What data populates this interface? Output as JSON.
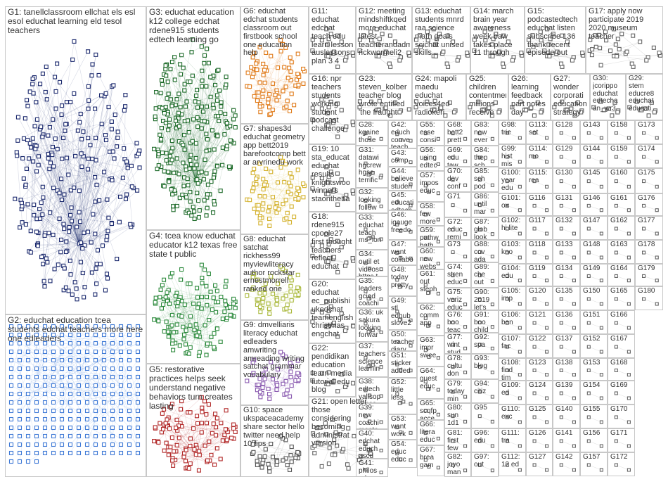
{
  "graph": {
    "groups": [
      {
        "id": "G1",
        "terms": "tanellclassroom ellchat els esl esol educhat learning eld tesol teachers",
        "color": "#1c2a6e"
      },
      {
        "id": "G2",
        "terms": "educhat education tcea students edchat teachers more here one edleaders",
        "color": "#3f7ad6"
      },
      {
        "id": "G3",
        "terms": "educhat education k12 college edchat rdene915 students edtech learning go",
        "color": "#1e6b2a"
      },
      {
        "id": "G4",
        "terms": "tcea know educhat educator k12 texas free state t public",
        "color": "#2e8b3e"
      },
      {
        "id": "G5",
        "terms": "restorative practices helps seek understand negative behaviors turn creates lasting",
        "color": "#b22a2a"
      },
      {
        "id": "G6",
        "terms": "educhat edchat students classroom out firstbook school one education help",
        "color": "#e07b1a"
      },
      {
        "id": "G7",
        "terms": "shapes3d educhat geometry app bett2019 barefootcomp bett ar arvrinedu work",
        "color": "#d4b22e"
      },
      {
        "id": "G8",
        "terms": "educhat satchat rickhess99 myviewliteracy author rockstar ernestmorrell ranked one",
        "color": "#a9b83a"
      },
      {
        "id": "G9",
        "terms": "dmvelliaris literacy educhat edleaders amwriting amreading writing satchat grammar vocabulary",
        "color": "#8a5ab0"
      },
      {
        "id": "G10",
        "terms": "space ukspaceacademy share sector hello twitter need help 10 tips",
        "color": "#555555"
      },
      {
        "id": "G11",
        "terms": "educhat edchat teach edu learn lesson auslessons plan 3 4",
        "color": "#666666"
      },
      {
        "id": "G12",
        "terms": "meeting mindshiftkqed more educhat latest teacherandadm rickwormeli2",
        "color": "#666666"
      },
      {
        "id": "G13",
        "terms": "educhat students mnrd raa science math goals scichat unised skills",
        "color": "#666666"
      },
      {
        "id": "G14",
        "terms": "march brain year awareness week baw takes place 11 through",
        "color": "#666666"
      },
      {
        "id": "G15",
        "terms": "podcastedtech educhat listen subscribe 136 thank recent episode out",
        "color": "#666666"
      },
      {
        "id": "G16",
        "terms": "npr teachers students working student podcast challenge",
        "color": "#666666"
      },
      {
        "id": "G17",
        "terms": "apply now participate 2019 2020 museum teacher",
        "color": "#666666"
      },
      {
        "id": "G18",
        "terms": "rdene915 cpoole27 first thought teachers reflect educhat",
        "color": "#666666"
      },
      {
        "id": "G19",
        "terms": "10 sta_educat educhat results knightswoo winners staontheba",
        "color": "#666666"
      },
      {
        "id": "G20",
        "terms": "educhat ec_publishi ukedchat teamenglish christmas engchat",
        "color": "#666666"
      },
      {
        "id": "G21",
        "terms": "open letter those considering becoming administrat version",
        "color": "#666666"
      },
      {
        "id": "G22",
        "terms": "pendidikan education learn media tutorial edu blog",
        "color": "#666666"
      },
      {
        "id": "G23",
        "terms": "steven_kolber teacher blog wrote entitled 'the fraught",
        "color": "#666666"
      },
      {
        "id": "G24",
        "terms": "mapoli maedu educhat voices4ed radiokeri",
        "color": "#666666"
      },
      {
        "id": "G25",
        "terms": "children contentment millions receive",
        "color": "#666666"
      },
      {
        "id": "G26",
        "terms": "learning feedback part notes day",
        "color": "#666666"
      },
      {
        "id": "G27",
        "terms": "wonder corporati education strategy",
        "color": "#666666"
      },
      {
        "id": "G28",
        "terms": "kgaine those more 100",
        "color": "#666666"
      },
      {
        "id": "G29",
        "terms": "stem educre8 educhat educati",
        "color": "#666666"
      },
      {
        "id": "G30",
        "terms": "jcorippo educhat edtecha an_wr3",
        "color": "#666666"
      },
      {
        "id": "G31",
        "terms": "datawi hgcrew hgse terrific",
        "color": "#666666"
      },
      {
        "id": "G32",
        "terms": "looking follow range",
        "color": "#666666"
      },
      {
        "id": "G33",
        "terms": "educhat teach ms_lon",
        "color": "#666666"
      },
      {
        "id": "G34",
        "terms": "outil et videos https t",
        "color": "#666666"
      },
      {
        "id": "G35",
        "terms": "leaders gcied coachi",
        "color": "#666666"
      },
      {
        "id": "G36",
        "terms": "uk sakura looking forwar",
        "color": "#666666"
      },
      {
        "id": "G37",
        "terms": "teachers science learnin",
        "color": "#666666"
      },
      {
        "id": "G38",
        "terms": "edtech yallsop ijcses",
        "color": "#666666"
      },
      {
        "id": "G39",
        "terms": "new coachi mento",
        "color": "#666666"
      },
      {
        "id": "G40",
        "terms": "edchat educh ascd",
        "color": "#666666"
      },
      {
        "id": "G41",
        "terms": "philos educa book",
        "color": "#666666"
      },
      {
        "id": "G42",
        "terms": "educh conve teach",
        "color": "#666666"
      },
      {
        "id": "G43",
        "terms": "comp more kids",
        "color": "#666666"
      },
      {
        "id": "G44",
        "terms": "believe studen",
        "color": "#666666"
      },
      {
        "id": "G45",
        "terms": "educati edtech",
        "color": "#666666"
      },
      {
        "id": "G46",
        "terms": "igauge freedo",
        "color": "#666666"
      },
      {
        "id": "G47",
        "terms": "want collabo",
        "color": "#666666"
      },
      {
        "id": "G48",
        "terms": "today pretty",
        "color": "#666666"
      },
      {
        "id": "G49",
        "terms": "stl edhub slove2",
        "color": "#666666"
      },
      {
        "id": "G50",
        "terms": "teacher diary",
        "color": "#666666"
      },
      {
        "id": "G51",
        "terms": "sticker added",
        "color": "#666666"
      },
      {
        "id": "G52",
        "terms": "little less",
        "color": "#666666"
      },
      {
        "id": "G53",
        "terms": "want work",
        "color": "#666666"
      },
      {
        "id": "G54",
        "terms": "educ educ",
        "color": "#666666"
      },
      {
        "id": "G55",
        "terms": "esse consi",
        "color": "#666666"
      },
      {
        "id": "G56",
        "terms": "using edtec",
        "color": "#666666"
      },
      {
        "id": "G57",
        "terms": "impos educ",
        "color": "#666666"
      },
      {
        "id": "G58",
        "terms": "few more",
        "color": "#666666"
      },
      {
        "id": "G59",
        "terms": "pathw bath",
        "color": "#666666"
      },
      {
        "id": "G60",
        "terms": "new webs",
        "color": "#666666"
      },
      {
        "id": "G61",
        "terms": "out steph",
        "color": "#666666"
      },
      {
        "id": "G62",
        "terms": "comm app",
        "color": "#666666"
      },
      {
        "id": "G63",
        "terms": "impr swee",
        "color": "#666666"
      },
      {
        "id": "G64",
        "terms": "guest educ",
        "color": "#666666"
      },
      {
        "id": "G65",
        "terms": "scqfp acce",
        "color": "#666666"
      },
      {
        "id": "G66",
        "terms": "litera educ",
        "color": "#666666"
      },
      {
        "id": "G67",
        "terms": "brea gam",
        "color": "#666666"
      },
      {
        "id": "G68",
        "terms": "bett2 prett",
        "color": "#666666"
      },
      {
        "id": "G69",
        "terms": "edu taw",
        "color": "#666666"
      },
      {
        "id": "G70",
        "terms": "dev conf",
        "color": "#666666"
      },
      {
        "id": "G71",
        "terms": "",
        "color": "#666666"
      },
      {
        "id": "G72",
        "terms": "educ remi",
        "color": "#666666"
      },
      {
        "id": "G73",
        "terms": "",
        "color": "#666666"
      },
      {
        "id": "G74",
        "terms": "stren educ",
        "color": "#666666"
      },
      {
        "id": "G75",
        "terms": "veriz educ",
        "color": "#666666"
      },
      {
        "id": "G76",
        "terms": "boo teac",
        "color": "#666666"
      },
      {
        "id": "G77",
        "terms": "wint stud",
        "color": "#666666"
      },
      {
        "id": "G78",
        "terms": "cultu don",
        "color": "#666666"
      },
      {
        "id": "G79",
        "terms": "today min",
        "color": "#666666"
      },
      {
        "id": "G80",
        "terms": "sun 1d1",
        "color": "#666666"
      },
      {
        "id": "G81",
        "terms": "first few",
        "color": "#666666"
      },
      {
        "id": "G82",
        "terms": "joyo man",
        "color": "#666666"
      },
      {
        "id": "G83",
        "terms": "new ever",
        "color": "#666666"
      },
      {
        "id": "G84",
        "terms": "thep sch",
        "color": "#666666"
      },
      {
        "id": "G85",
        "terms": "sch pod",
        "color": "#666666"
      },
      {
        "id": "G86",
        "terms": "until mar",
        "color": "#666666"
      },
      {
        "id": "G87",
        "terms": "glob look",
        "color": "#666666"
      },
      {
        "id": "G88",
        "terms": "cov ada",
        "color": "#666666"
      },
      {
        "id": "G89",
        "terms": "che out",
        "color": "#666666"
      },
      {
        "id": "G90",
        "terms": "2019 let's",
        "color": "#666666"
      },
      {
        "id": "G91",
        "terms": "boo child",
        "color": "#666666"
      },
      {
        "id": "G92",
        "terms": "spa",
        "color": "#666666"
      },
      {
        "id": "G93",
        "terms": "blog",
        "color": "#666666"
      },
      {
        "id": "G94",
        "terms": "citiz",
        "color": "#666666"
      },
      {
        "id": "G95",
        "terms": "",
        "color": "#666666"
      },
      {
        "id": "G96",
        "terms": "edu",
        "color": "#666666"
      },
      {
        "id": "G97",
        "terms": "out",
        "color": "#666666"
      },
      {
        "id": "G98",
        "terms": "trie",
        "color": "#666666"
      },
      {
        "id": "G99",
        "terms": "hist mis",
        "color": "#666666"
      },
      {
        "id": "G100",
        "terms": "year edu",
        "color": "#666666"
      },
      {
        "id": "G101",
        "terms": "ox",
        "color": "#666666"
      },
      {
        "id": "G102",
        "terms": "hi lite",
        "color": "#666666"
      },
      {
        "id": "G103",
        "terms": "kno",
        "color": "#666666"
      },
      {
        "id": "G104",
        "terms": "edu",
        "color": "#666666"
      },
      {
        "id": "G105",
        "terms": "imp",
        "color": "#666666"
      },
      {
        "id": "G106",
        "terms": "ben",
        "color": "#666666"
      },
      {
        "id": "G107",
        "terms": "fac",
        "color": "#666666"
      },
      {
        "id": "G108",
        "terms": "find tim",
        "color": "#666666"
      },
      {
        "id": "G109",
        "terms": "ed",
        "color": "#666666"
      },
      {
        "id": "G110",
        "terms": "exc",
        "color": "#666666"
      },
      {
        "id": "G111",
        "terms": "tra",
        "color": "#666666"
      },
      {
        "id": "G112",
        "terms": "12 ed",
        "color": "#666666"
      },
      {
        "id": "G113",
        "terms": "set",
        "color": "#666666"
      },
      {
        "id": "G114",
        "terms": "mo",
        "color": "#666666"
      },
      {
        "id": "G115",
        "terms": "rea",
        "color": "#666666"
      },
      {
        "id": "G116",
        "terms": "",
        "color": "#666666"
      },
      {
        "id": "G117",
        "terms": "",
        "color": "#666666"
      },
      {
        "id": "G118",
        "terms": "",
        "color": "#666666"
      },
      {
        "id": "G119",
        "terms": "",
        "color": "#666666"
      },
      {
        "id": "G120",
        "terms": "",
        "color": "#666666"
      },
      {
        "id": "G121",
        "terms": "",
        "color": "#666666"
      },
      {
        "id": "G122",
        "terms": "",
        "color": "#666666"
      },
      {
        "id": "G123",
        "terms": "",
        "color": "#666666"
      },
      {
        "id": "G124",
        "terms": "",
        "color": "#666666"
      },
      {
        "id": "G125",
        "terms": "",
        "color": "#666666"
      },
      {
        "id": "G126",
        "terms": "",
        "color": "#666666"
      },
      {
        "id": "G127",
        "terms": "",
        "color": "#666666"
      },
      {
        "id": "G128",
        "terms": "",
        "color": "#666666"
      },
      {
        "id": "G129",
        "terms": "",
        "color": "#666666"
      },
      {
        "id": "G130",
        "terms": "",
        "color": "#666666"
      },
      {
        "id": "G131",
        "terms": "",
        "color": "#666666"
      },
      {
        "id": "G132",
        "terms": "",
        "color": "#666666"
      },
      {
        "id": "G133",
        "terms": "",
        "color": "#666666"
      },
      {
        "id": "G134",
        "terms": "",
        "color": "#666666"
      },
      {
        "id": "G135",
        "terms": "",
        "color": "#666666"
      },
      {
        "id": "G136",
        "terms": "",
        "color": "#666666"
      },
      {
        "id": "G137",
        "terms": "",
        "color": "#666666"
      },
      {
        "id": "G138",
        "terms": "",
        "color": "#666666"
      },
      {
        "id": "G139",
        "terms": "",
        "color": "#666666"
      },
      {
        "id": "G140",
        "terms": "",
        "color": "#666666"
      },
      {
        "id": "G141",
        "terms": "",
        "color": "#666666"
      },
      {
        "id": "G142",
        "terms": "",
        "color": "#666666"
      },
      {
        "id": "G143",
        "terms": "",
        "color": "#666666"
      },
      {
        "id": "G144",
        "terms": "",
        "color": "#666666"
      },
      {
        "id": "G145",
        "terms": "",
        "color": "#666666"
      },
      {
        "id": "G146",
        "terms": "",
        "color": "#666666"
      },
      {
        "id": "G147",
        "terms": "",
        "color": "#666666"
      },
      {
        "id": "G148",
        "terms": "",
        "color": "#666666"
      },
      {
        "id": "G149",
        "terms": "",
        "color": "#666666"
      },
      {
        "id": "G150",
        "terms": "",
        "color": "#666666"
      },
      {
        "id": "G151",
        "terms": "",
        "color": "#666666"
      },
      {
        "id": "G152",
        "terms": "",
        "color": "#666666"
      },
      {
        "id": "G153",
        "terms": "",
        "color": "#666666"
      },
      {
        "id": "G154",
        "terms": "",
        "color": "#666666"
      },
      {
        "id": "G155",
        "terms": "",
        "color": "#666666"
      },
      {
        "id": "G156",
        "terms": "",
        "color": "#666666"
      },
      {
        "id": "G157",
        "terms": "",
        "color": "#666666"
      },
      {
        "id": "G158",
        "terms": "",
        "color": "#666666"
      },
      {
        "id": "G159",
        "terms": "",
        "color": "#666666"
      },
      {
        "id": "G160",
        "terms": "",
        "color": "#666666"
      },
      {
        "id": "G161",
        "terms": "",
        "color": "#666666"
      },
      {
        "id": "G162",
        "terms": "",
        "color": "#666666"
      },
      {
        "id": "G163",
        "terms": "",
        "color": "#666666"
      },
      {
        "id": "G164",
        "terms": "",
        "color": "#666666"
      },
      {
        "id": "G165",
        "terms": "",
        "color": "#666666"
      },
      {
        "id": "G166",
        "terms": "",
        "color": "#666666"
      },
      {
        "id": "G167",
        "terms": "",
        "color": "#666666"
      },
      {
        "id": "G168",
        "terms": "",
        "color": "#666666"
      },
      {
        "id": "G169",
        "terms": "",
        "color": "#666666"
      },
      {
        "id": "G170",
        "terms": "",
        "color": "#666666"
      },
      {
        "id": "G171",
        "terms": "",
        "color": "#666666"
      },
      {
        "id": "G172",
        "terms": "",
        "color": "#666666"
      },
      {
        "id": "G173",
        "terms": "",
        "color": "#666666"
      },
      {
        "id": "G174",
        "terms": "",
        "color": "#666666"
      },
      {
        "id": "G175",
        "terms": "",
        "color": "#666666"
      },
      {
        "id": "G176",
        "terms": "",
        "color": "#666666"
      },
      {
        "id": "G177",
        "terms": "",
        "color": "#666666"
      },
      {
        "id": "G178",
        "terms": "",
        "color": "#666666"
      },
      {
        "id": "G179",
        "terms": "",
        "color": "#666666"
      },
      {
        "id": "G180",
        "terms": "",
        "color": "#666666"
      }
    ]
  }
}
